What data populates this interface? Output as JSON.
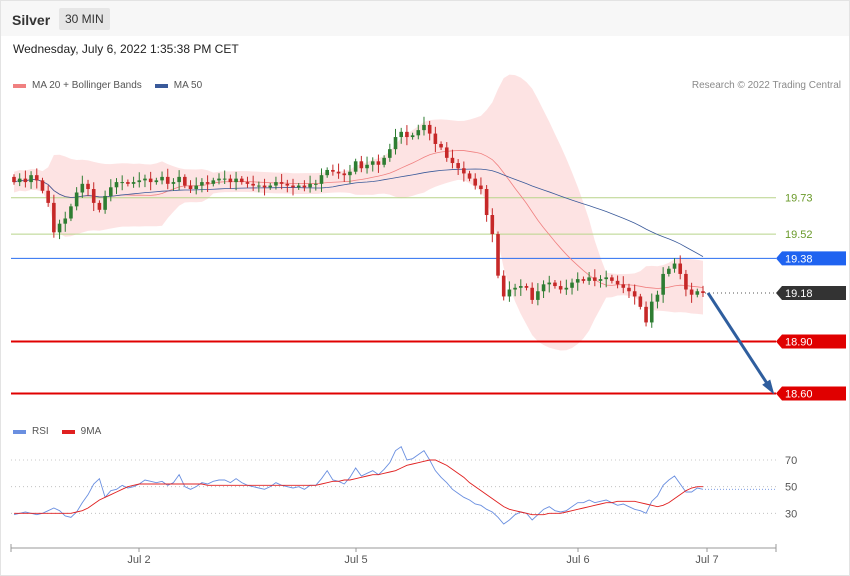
{
  "header": {
    "symbol": "Silver",
    "timeframe": "30 MIN",
    "datetime": "Wednesday, July 6, 2022 1:35:38 PM CET"
  },
  "legend": {
    "ma_label": "MA 20 + Bollinger Bands",
    "ma50_label": "MA 50",
    "rsi_label": "RSI",
    "rsi_ma_label": "9MA",
    "credit": "Research © 2022 Trading Central"
  },
  "colors": {
    "bull": "#2e7d32",
    "bear": "#c62828",
    "band": "#fde0e0",
    "ma20": "#f08080",
    "ma50": "#3a5a9a",
    "support": "#e00000",
    "pivot": "#2a6ef0",
    "resistance_green": "#b8d48a",
    "arrow": "#2f5e9e",
    "rsi": "#6a8fe0",
    "rsi_ma": "#e02020"
  },
  "chart_data": {
    "type": "candlestick",
    "x_labels": [
      "Jul 2",
      "Jul 5",
      "Jul 6",
      "Jul 7"
    ],
    "price_levels": [
      {
        "value": "19.73",
        "kind": "resistance"
      },
      {
        "value": "19.52",
        "kind": "resistance"
      },
      {
        "value": "19.38",
        "kind": "pivot"
      },
      {
        "value": "19.18",
        "kind": "last"
      },
      {
        "value": "18.90",
        "kind": "support"
      },
      {
        "value": "18.60",
        "kind": "support"
      }
    ],
    "ylim": [
      18.47,
      20.34
    ],
    "forecast_arrow": {
      "from": 19.18,
      "to": 18.6
    },
    "close": [
      19.82,
      19.84,
      19.82,
      19.86,
      19.83,
      19.77,
      19.7,
      19.53,
      19.58,
      19.61,
      19.68,
      19.76,
      19.81,
      19.78,
      19.7,
      19.66,
      19.74,
      19.79,
      19.82,
      19.82,
      19.81,
      19.82,
      19.83,
      19.84,
      19.82,
      19.83,
      19.85,
      19.81,
      19.82,
      19.85,
      19.8,
      19.78,
      19.8,
      19.82,
      19.81,
      19.83,
      19.84,
      19.84,
      19.82,
      19.84,
      19.82,
      19.81,
      19.8,
      19.8,
      19.79,
      19.8,
      19.82,
      19.81,
      19.8,
      19.79,
      19.8,
      19.79,
      19.81,
      19.81,
      19.86,
      19.89,
      19.88,
      19.87,
      19.86,
      19.88,
      19.94,
      19.9,
      19.92,
      19.94,
      19.92,
      19.96,
      20.01,
      20.08,
      20.11,
      20.08,
      20.09,
      20.12,
      20.15,
      20.1,
      20.04,
      20.02,
      19.96,
      19.93,
      19.9,
      19.87,
      19.84,
      19.8,
      19.78,
      19.63,
      19.52,
      19.28,
      19.16,
      19.2,
      19.21,
      19.22,
      19.21,
      19.14,
      19.19,
      19.23,
      19.24,
      19.22,
      19.2,
      19.21,
      19.24,
      19.26,
      19.25,
      19.27,
      19.25,
      19.26,
      19.27,
      19.25,
      19.23,
      19.21,
      19.19,
      19.16,
      19.1,
      19.01,
      19.13,
      19.17,
      19.29,
      19.32,
      19.35,
      19.29,
      19.2,
      19.17,
      19.19,
      19.18
    ],
    "rsi_ticks": [
      70,
      50,
      30
    ],
    "rsi": [
      29,
      30,
      31,
      30,
      29,
      30,
      32,
      34,
      32,
      28,
      27,
      31,
      38,
      44,
      52,
      56,
      42,
      47,
      48,
      51,
      49,
      50,
      52,
      55,
      54,
      53,
      54,
      51,
      53,
      59,
      50,
      48,
      50,
      53,
      52,
      54,
      55,
      55,
      53,
      56,
      53,
      51,
      50,
      49,
      48,
      50,
      53,
      51,
      50,
      49,
      50,
      48,
      51,
      51,
      56,
      62,
      55,
      54,
      52,
      57,
      64,
      58,
      60,
      62,
      59,
      63,
      68,
      77,
      80,
      70,
      71,
      74,
      77,
      70,
      62,
      57,
      53,
      48,
      45,
      42,
      40,
      37,
      36,
      33,
      31,
      27,
      22,
      25,
      29,
      31,
      30,
      25,
      29,
      33,
      35,
      32,
      31,
      32,
      35,
      38,
      38,
      40,
      38,
      39,
      40,
      38,
      36,
      37,
      35,
      33,
      32,
      30,
      39,
      43,
      51,
      55,
      58,
      52,
      46,
      46,
      49,
      48
    ],
    "rsi_ma": [
      30,
      30,
      30,
      30,
      30,
      30,
      30,
      30,
      30,
      30,
      30,
      31,
      32,
      34,
      37,
      40,
      42,
      44,
      46,
      48,
      50,
      51,
      52,
      52,
      52,
      52,
      52,
      52,
      52,
      52,
      52,
      52,
      52,
      52,
      51,
      51,
      51,
      51,
      51,
      51,
      51,
      51,
      51,
      51,
      51,
      51,
      51,
      51,
      51,
      51,
      51,
      51,
      51,
      51,
      52,
      53,
      54,
      54,
      55,
      55,
      56,
      57,
      58,
      59,
      59,
      60,
      61,
      62,
      64,
      66,
      67,
      68,
      69,
      70,
      70,
      68,
      66,
      63,
      60,
      57,
      53,
      50,
      47,
      44,
      41,
      38,
      35,
      33,
      32,
      31,
      30,
      29,
      29,
      29,
      30,
      30,
      30,
      31,
      32,
      33,
      34,
      35,
      36,
      37,
      38,
      38,
      39,
      39,
      39,
      39,
      38,
      37,
      36,
      35,
      36,
      38,
      41,
      44,
      47,
      49,
      50,
      50
    ]
  }
}
